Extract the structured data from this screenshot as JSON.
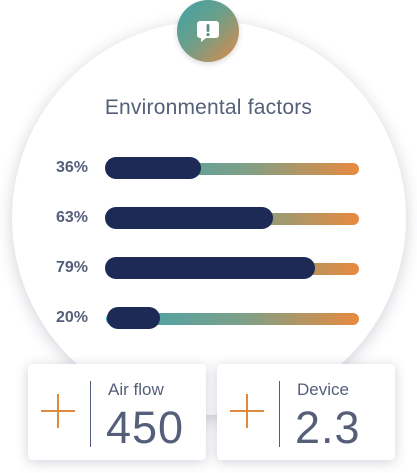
{
  "title": "Environmental factors",
  "alert_icon": "alert-message-icon",
  "colors": {
    "fill": "#1c2a55",
    "track_start": "#3ea3b0",
    "track_end": "#e88a3e",
    "text": "#555f7a",
    "accent": "#e08a3e"
  },
  "factors": [
    {
      "label": "36%",
      "value": 36
    },
    {
      "label": "63%",
      "value": 63
    },
    {
      "label": "79%",
      "value": 79
    },
    {
      "label": "20%",
      "value": 20
    }
  ],
  "stats": [
    {
      "label": "Air flow",
      "value": "450",
      "icon": "plus-icon"
    },
    {
      "label": "Device",
      "value": "2.3",
      "icon": "plus-icon"
    }
  ]
}
